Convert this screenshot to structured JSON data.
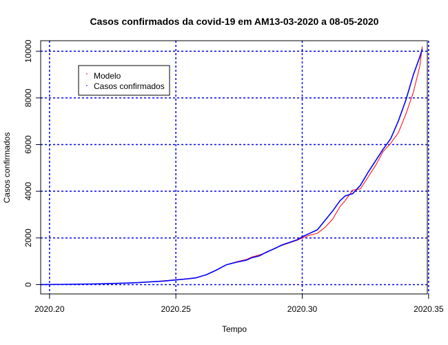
{
  "chart_data": {
    "type": "line",
    "title": "Casos confirmados da covid-19 em AM13-03-2020 a 08-05-2020",
    "xlabel": "Tempo",
    "ylabel": "Casos confirmados",
    "xlim": [
      2020.1965,
      2020.3495
    ],
    "ylim": [
      -400,
      10450
    ],
    "x_ticks": [
      2020.2,
      2020.25,
      2020.3,
      2020.35
    ],
    "x_tick_labels": [
      "2020.20",
      "2020.25",
      "2020.30",
      "2020.35"
    ],
    "y_ticks": [
      0,
      2000,
      4000,
      6000,
      8000,
      10000
    ],
    "y_tick_labels": [
      "0",
      "2000",
      "4000",
      "6000",
      "8000",
      "10000"
    ],
    "grid": true,
    "grid_color": "#0000ff",
    "legend_position": "top-left",
    "series": [
      {
        "name": "Modelo",
        "color": "#ff0000",
        "x": [
          2020.1965,
          2020.2,
          2020.205,
          2020.21,
          2020.215,
          2020.22,
          2020.225,
          2020.23,
          2020.235,
          2020.24,
          2020.245,
          2020.25,
          2020.255,
          2020.258,
          2020.262,
          2020.266,
          2020.27,
          2020.274,
          2020.278,
          2020.28,
          2020.283,
          2020.286,
          2020.289,
          2020.292,
          2020.295,
          2020.298,
          2020.3,
          2020.303,
          2020.306,
          2020.309,
          2020.312,
          2020.315,
          2020.317,
          2020.32,
          2020.323,
          2020.326,
          2020.329,
          2020.332,
          2020.335,
          2020.338,
          2020.341,
          2020.344,
          2020.3465,
          2020.3475
        ],
        "y": [
          0,
          5,
          10,
          15,
          25,
          35,
          50,
          65,
          85,
          120,
          160,
          210,
          260,
          300,
          420,
          620,
          850,
          980,
          1080,
          1180,
          1270,
          1380,
          1550,
          1680,
          1790,
          1900,
          2000,
          2120,
          2200,
          2450,
          2800,
          3350,
          3600,
          4050,
          4100,
          4600,
          5100,
          5700,
          6050,
          6500,
          7300,
          8250,
          9350,
          10200
        ]
      },
      {
        "name": "Casos confirmados",
        "color": "#0000ff",
        "x": [
          2020.1965,
          2020.2,
          2020.205,
          2020.21,
          2020.215,
          2020.22,
          2020.225,
          2020.23,
          2020.235,
          2020.24,
          2020.245,
          2020.25,
          2020.255,
          2020.258,
          2020.262,
          2020.266,
          2020.27,
          2020.274,
          2020.278,
          2020.28,
          2020.283,
          2020.286,
          2020.289,
          2020.292,
          2020.295,
          2020.298,
          2020.3,
          2020.303,
          2020.306,
          2020.309,
          2020.312,
          2020.315,
          2020.317,
          2020.32,
          2020.323,
          2020.326,
          2020.329,
          2020.332,
          2020.335,
          2020.338,
          2020.341,
          2020.344,
          2020.3465,
          2020.3475
        ],
        "y": [
          0,
          5,
          10,
          15,
          25,
          35,
          50,
          65,
          85,
          120,
          150,
          200,
          250,
          290,
          420,
          620,
          850,
          960,
          1050,
          1150,
          1230,
          1400,
          1540,
          1700,
          1810,
          1920,
          2050,
          2200,
          2350,
          2750,
          3150,
          3600,
          3800,
          3900,
          4250,
          4800,
          5300,
          5800,
          6250,
          7000,
          7900,
          9000,
          9750,
          10100
        ]
      }
    ]
  }
}
